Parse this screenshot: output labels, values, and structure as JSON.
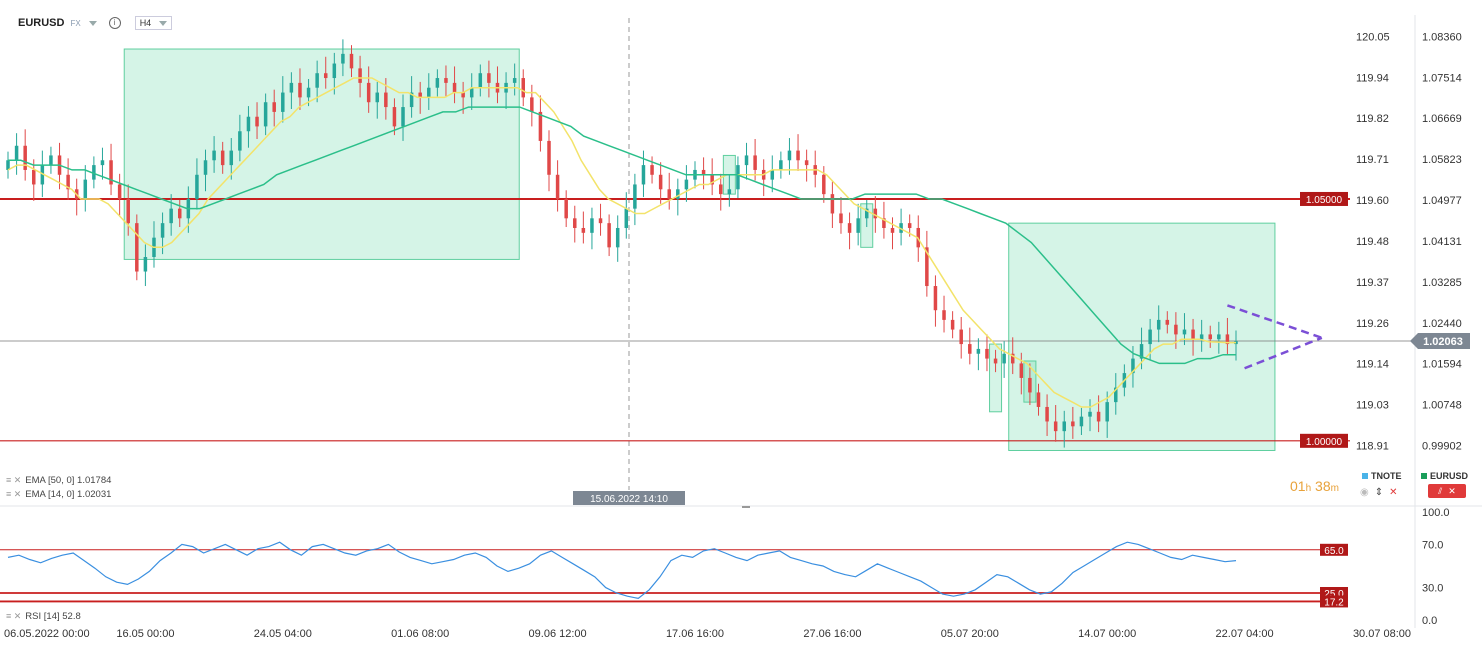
{
  "toolbar": {
    "symbol": "EURUSD",
    "class": "FX",
    "timeframe": "H4"
  },
  "indicators": {
    "ema50": "EMA [50, 0]  1.01784",
    "ema14": "EMA [14, 0]  1.02031",
    "rsi": "RSI [14]  52.8"
  },
  "legend": {
    "s1": "TNOTE",
    "s2": "EURUSD",
    "s1_color": "#4ab3e8",
    "s2_color": "#1a9e5a"
  },
  "timer": {
    "h": "01",
    "hl": "h",
    "m": "38",
    "ml": "m"
  },
  "crosshair_label": "15.06.2022 14:10",
  "colors": {
    "up": "#26a69a",
    "down": "#e04848",
    "ema14": "#f3e36a",
    "ema50": "#2bbf8a",
    "rsi": "#3a8fe0",
    "level": "#c81e1e",
    "zone": "rgba(104,214,168,0.28)",
    "pattern": "#7b4fd6"
  },
  "chart_data": {
    "type": "candlestick",
    "right_axis_ticks": [
      "1.08360",
      "1.07514",
      "1.06669",
      "1.05823",
      "1.04977",
      "1.04131",
      "1.03285",
      "1.02440",
      "1.01594",
      "1.00748",
      "0.99902"
    ],
    "left_axis_ticks": [
      "120.05",
      "119.94",
      "119.82",
      "119.71",
      "119.60",
      "119.48",
      "119.37",
      "119.26",
      "119.14",
      "119.03",
      "118.91"
    ],
    "price_ylim": [
      0.995,
      1.087
    ],
    "rsi_ticks": [
      "100.0",
      "70.0",
      "30.0",
      "0.0"
    ],
    "rsi_ylim": [
      0,
      100
    ],
    "x_labels": [
      "06.05.2022  00:00",
      "16.05  00:00",
      "24.05  04:00",
      "01.06  08:00",
      "09.06  12:00",
      "17.06  16:00",
      "27.06  16:00",
      "05.07  20:00",
      "14.07  00:00",
      "22.07  04:00",
      "30.07  08:00"
    ],
    "levels": [
      {
        "label": "1.05000",
        "value": 1.05
      },
      {
        "label": "1.00000",
        "value": 1.0
      }
    ],
    "current_price": {
      "label": "1.02063",
      "value": 1.02063
    },
    "rsi_levels": [
      {
        "label": "65.0",
        "value": 65
      },
      {
        "label": "25.0",
        "value": 25
      },
      {
        "label": "17.2",
        "value": 17.2
      }
    ],
    "closes": [
      1.058,
      1.061,
      1.056,
      1.053,
      1.057,
      1.059,
      1.055,
      1.052,
      1.05,
      1.054,
      1.057,
      1.058,
      1.053,
      1.05,
      1.045,
      1.035,
      1.038,
      1.042,
      1.045,
      1.048,
      1.046,
      1.05,
      1.055,
      1.058,
      1.06,
      1.057,
      1.06,
      1.064,
      1.067,
      1.065,
      1.07,
      1.068,
      1.072,
      1.074,
      1.071,
      1.073,
      1.076,
      1.075,
      1.078,
      1.08,
      1.077,
      1.074,
      1.07,
      1.072,
      1.069,
      1.065,
      1.069,
      1.072,
      1.071,
      1.073,
      1.075,
      1.074,
      1.072,
      1.071,
      1.073,
      1.076,
      1.074,
      1.072,
      1.074,
      1.075,
      1.071,
      1.068,
      1.062,
      1.055,
      1.05,
      1.046,
      1.044,
      1.043,
      1.046,
      1.045,
      1.04,
      1.044,
      1.048,
      1.053,
      1.057,
      1.055,
      1.052,
      1.05,
      1.052,
      1.054,
      1.056,
      1.055,
      1.053,
      1.051,
      1.052,
      1.057,
      1.059,
      1.056,
      1.054,
      1.056,
      1.058,
      1.06,
      1.058,
      1.057,
      1.055,
      1.051,
      1.047,
      1.045,
      1.043,
      1.046,
      1.048,
      1.046,
      1.044,
      1.043,
      1.045,
      1.044,
      1.04,
      1.032,
      1.027,
      1.025,
      1.023,
      1.02,
      1.018,
      1.019,
      1.017,
      1.016,
      1.018,
      1.016,
      1.013,
      1.01,
      1.007,
      1.004,
      1.002,
      1.004,
      1.003,
      1.005,
      1.006,
      1.004,
      1.008,
      1.011,
      1.014,
      1.017,
      1.02,
      1.023,
      1.025,
      1.024,
      1.022,
      1.023,
      1.021,
      1.022,
      1.021,
      1.022,
      1.02,
      1.0206
    ],
    "ema14": [
      1.056,
      1.057,
      1.057,
      1.056,
      1.055,
      1.054,
      1.053,
      1.052,
      1.05,
      1.05,
      1.05,
      1.049,
      1.047,
      1.045,
      1.043,
      1.041,
      1.04,
      1.04,
      1.041,
      1.043,
      1.045,
      1.047,
      1.05,
      1.052,
      1.054,
      1.056,
      1.058,
      1.06,
      1.062,
      1.064,
      1.066,
      1.067,
      1.069,
      1.07,
      1.071,
      1.072,
      1.073,
      1.074,
      1.075,
      1.075,
      1.075,
      1.074,
      1.073,
      1.072,
      1.072,
      1.071,
      1.071,
      1.071,
      1.071,
      1.072,
      1.072,
      1.073,
      1.073,
      1.073,
      1.073,
      1.073,
      1.073,
      1.072,
      1.072,
      1.07,
      1.068,
      1.065,
      1.062,
      1.058,
      1.055,
      1.052,
      1.05,
      1.049,
      1.048,
      1.047,
      1.047,
      1.048,
      1.049,
      1.05,
      1.051,
      1.052,
      1.053,
      1.053,
      1.054,
      1.055,
      1.055,
      1.055,
      1.055,
      1.055,
      1.056,
      1.056,
      1.056,
      1.056,
      1.056,
      1.056,
      1.055,
      1.053,
      1.051,
      1.049,
      1.048,
      1.047,
      1.046,
      1.045,
      1.044,
      1.043,
      1.042,
      1.039,
      1.036,
      1.033,
      1.03,
      1.027,
      1.025,
      1.023,
      1.021,
      1.019,
      1.018,
      1.017,
      1.016,
      1.014,
      1.012,
      1.01,
      1.009,
      1.008,
      1.007,
      1.007,
      1.008,
      1.009,
      1.011,
      1.013,
      1.015,
      1.017,
      1.019,
      1.02,
      1.02,
      1.021,
      1.021,
      1.021,
      1.0205,
      1.0204,
      1.0203,
      1.0203
    ],
    "ema50": [
      1.058,
      1.058,
      1.057,
      1.057,
      1.057,
      1.056,
      1.056,
      1.055,
      1.054,
      1.053,
      1.052,
      1.051,
      1.05,
      1.049,
      1.048,
      1.048,
      1.049,
      1.05,
      1.051,
      1.052,
      1.053,
      1.055,
      1.056,
      1.057,
      1.058,
      1.059,
      1.06,
      1.061,
      1.062,
      1.063,
      1.064,
      1.065,
      1.066,
      1.067,
      1.068,
      1.068,
      1.069,
      1.069,
      1.069,
      1.069,
      1.069,
      1.068,
      1.067,
      1.066,
      1.065,
      1.063,
      1.062,
      1.061,
      1.06,
      1.059,
      1.058,
      1.057,
      1.056,
      1.055,
      1.055,
      1.055,
      1.055,
      1.055,
      1.054,
      1.053,
      1.052,
      1.051,
      1.05,
      1.05,
      1.05,
      1.05,
      1.05,
      1.051,
      1.051,
      1.051,
      1.051,
      1.051,
      1.05,
      1.05,
      1.049,
      1.048,
      1.047,
      1.046,
      1.045,
      1.043,
      1.041,
      1.038,
      1.035,
      1.032,
      1.029,
      1.026,
      1.023,
      1.02,
      1.018,
      1.017,
      1.016,
      1.016,
      1.016,
      1.017,
      1.017,
      1.0178,
      1.0178
    ],
    "rsi": [
      58,
      60,
      56,
      53,
      57,
      60,
      62,
      55,
      48,
      40,
      35,
      33,
      38,
      45,
      55,
      62,
      70,
      68,
      62,
      66,
      70,
      65,
      60,
      66,
      68,
      72,
      65,
      60,
      68,
      70,
      66,
      62,
      60,
      64,
      66,
      70,
      63,
      58,
      55,
      52,
      54,
      56,
      60,
      62,
      58,
      50,
      45,
      48,
      52,
      60,
      64,
      58,
      52,
      46,
      40,
      30,
      25,
      22,
      20,
      28,
      40,
      55,
      60,
      58,
      64,
      66,
      62,
      58,
      55,
      60,
      62,
      64,
      58,
      55,
      52,
      50,
      45,
      42,
      40,
      46,
      52,
      48,
      44,
      40,
      36,
      30,
      24,
      22,
      24,
      28,
      35,
      42,
      40,
      34,
      28,
      24,
      26,
      34,
      44,
      50,
      56,
      62,
      68,
      72,
      70,
      66,
      62,
      58,
      56,
      60,
      58,
      56,
      54,
      55
    ]
  }
}
